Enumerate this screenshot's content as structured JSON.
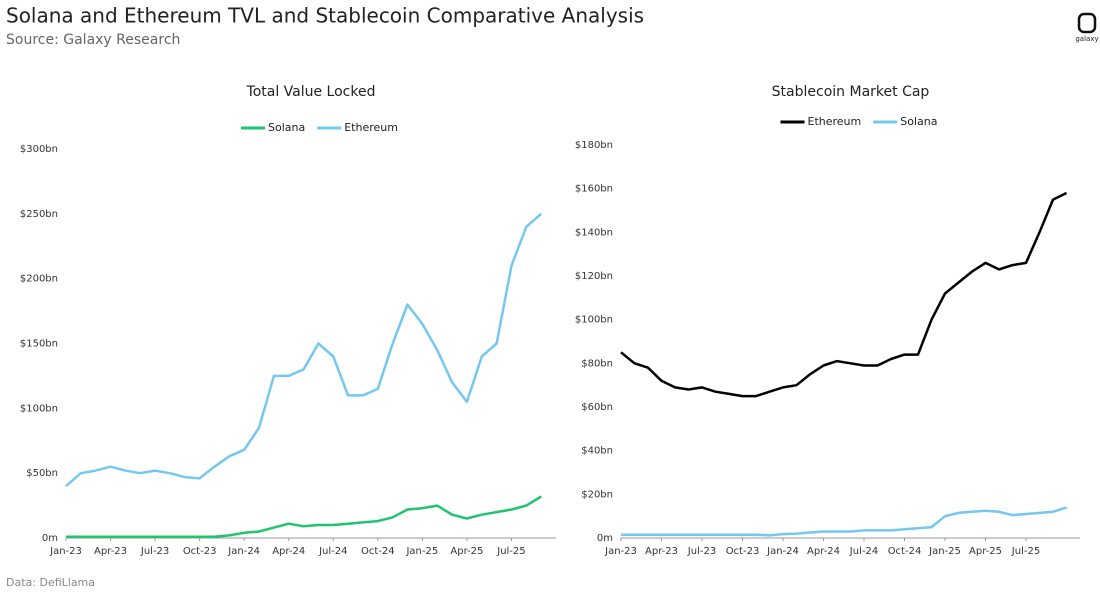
{
  "title": "Solana and Ethereum TVL and Stablecoin Comparative Analysis",
  "source": "Source: Galaxy Research",
  "footnote": "Data: DefiLlama",
  "logo": "galaxy",
  "chart_data": [
    {
      "type": "line",
      "title": "Total Value Locked",
      "x": [
        "2023-01",
        "2023-02",
        "2023-03",
        "2023-04",
        "2023-05",
        "2023-06",
        "2023-07",
        "2023-08",
        "2023-09",
        "2023-10",
        "2023-11",
        "2023-12",
        "2024-01",
        "2024-02",
        "2024-03",
        "2024-04",
        "2024-05",
        "2024-06",
        "2024-07",
        "2024-08",
        "2024-09",
        "2024-10",
        "2024-11",
        "2024-12",
        "2025-01",
        "2025-02",
        "2025-03",
        "2025-04",
        "2025-05",
        "2025-06",
        "2025-07",
        "2025-08",
        "2025-09"
      ],
      "xticks": [
        {
          "value": "2023-01",
          "label": "Jan-23"
        },
        {
          "value": "2023-04",
          "label": "Apr-23"
        },
        {
          "value": "2023-07",
          "label": "Jul-23"
        },
        {
          "value": "2023-10",
          "label": "Oct-23"
        },
        {
          "value": "2024-01",
          "label": "Jan-24"
        },
        {
          "value": "2024-04",
          "label": "Apr-24"
        },
        {
          "value": "2024-07",
          "label": "Jul-24"
        },
        {
          "value": "2024-10",
          "label": "Oct-24"
        },
        {
          "value": "2025-01",
          "label": "Jan-25"
        },
        {
          "value": "2025-04",
          "label": "Apr-25"
        },
        {
          "value": "2025-07",
          "label": "Jul-25"
        }
      ],
      "ylim": [
        0,
        300
      ],
      "yticks": [
        {
          "value": 0,
          "label": "0m"
        },
        {
          "value": 50,
          "label": "$50bn"
        },
        {
          "value": 100,
          "label": "$100bn"
        },
        {
          "value": 150,
          "label": "$150bn"
        },
        {
          "value": 200,
          "label": "$200bn"
        },
        {
          "value": 250,
          "label": "$250bn"
        },
        {
          "value": 300,
          "label": "$300bn"
        }
      ],
      "legend": "top",
      "series": [
        {
          "name": "Solana",
          "color": "#1fc46e",
          "values": [
            1,
            1,
            1,
            1,
            1,
            1,
            1,
            1,
            1,
            1,
            1,
            2,
            4,
            5,
            8,
            11,
            9,
            10,
            10,
            11,
            12,
            13,
            16,
            22,
            23,
            25,
            18,
            15,
            18,
            20,
            22,
            25,
            32
          ]
        },
        {
          "name": "Ethereum",
          "color": "#74c8f0",
          "values": [
            40,
            50,
            52,
            55,
            52,
            50,
            52,
            50,
            47,
            46,
            55,
            63,
            68,
            85,
            125,
            125,
            130,
            150,
            140,
            110,
            110,
            115,
            150,
            180,
            165,
            145,
            120,
            105,
            140,
            150,
            210,
            240,
            250
          ]
        }
      ]
    },
    {
      "type": "line",
      "title": "Stablecoin Market Cap",
      "x": [
        "2023-01",
        "2023-02",
        "2023-03",
        "2023-04",
        "2023-05",
        "2023-06",
        "2023-07",
        "2023-08",
        "2023-09",
        "2023-10",
        "2023-11",
        "2023-12",
        "2024-01",
        "2024-02",
        "2024-03",
        "2024-04",
        "2024-05",
        "2024-06",
        "2024-07",
        "2024-08",
        "2024-09",
        "2024-10",
        "2024-11",
        "2024-12",
        "2025-01",
        "2025-02",
        "2025-03",
        "2025-04",
        "2025-05",
        "2025-06",
        "2025-07",
        "2025-08",
        "2025-09",
        "2025-10"
      ],
      "xticks": [
        {
          "value": "2023-01",
          "label": "Jan-23"
        },
        {
          "value": "2023-04",
          "label": "Apr-23"
        },
        {
          "value": "2023-07",
          "label": "Jul-23"
        },
        {
          "value": "2023-10",
          "label": "Oct-23"
        },
        {
          "value": "2024-01",
          "label": "Jan-24"
        },
        {
          "value": "2024-04",
          "label": "Apr-24"
        },
        {
          "value": "2024-07",
          "label": "Jul-24"
        },
        {
          "value": "2024-10",
          "label": "Oct-24"
        },
        {
          "value": "2025-01",
          "label": "Jan-25"
        },
        {
          "value": "2025-04",
          "label": "Apr-25"
        },
        {
          "value": "2025-07",
          "label": "Jul-25"
        }
      ],
      "ylim": [
        0,
        180
      ],
      "yticks": [
        {
          "value": 0,
          "label": "0m"
        },
        {
          "value": 20,
          "label": "$20bn"
        },
        {
          "value": 40,
          "label": "$40bn"
        },
        {
          "value": 60,
          "label": "$60bn"
        },
        {
          "value": 80,
          "label": "$80bn"
        },
        {
          "value": 100,
          "label": "$100bn"
        },
        {
          "value": 120,
          "label": "$120bn"
        },
        {
          "value": 140,
          "label": "$140bn"
        },
        {
          "value": 160,
          "label": "$160bn"
        },
        {
          "value": 180,
          "label": "$180bn"
        }
      ],
      "legend": "top",
      "series": [
        {
          "name": "Ethereum",
          "color": "#000000",
          "values": [
            85,
            80,
            78,
            72,
            69,
            68,
            69,
            67,
            66,
            65,
            65,
            67,
            69,
            70,
            75,
            79,
            81,
            80,
            79,
            79,
            82,
            84,
            84,
            100,
            112,
            117,
            122,
            126,
            123,
            125,
            126,
            140,
            155,
            158
          ]
        },
        {
          "name": "Solana",
          "color": "#74c8f0",
          "values": [
            1.5,
            1.5,
            1.5,
            1.5,
            1.5,
            1.5,
            1.5,
            1.5,
            1.5,
            1.5,
            1.5,
            1.2,
            1.8,
            2,
            2.5,
            3,
            3,
            3,
            3.5,
            3.5,
            3.5,
            4,
            4.5,
            5,
            10,
            11.5,
            12,
            12.5,
            12,
            10.5,
            11,
            11.5,
            12,
            14
          ]
        }
      ]
    }
  ]
}
